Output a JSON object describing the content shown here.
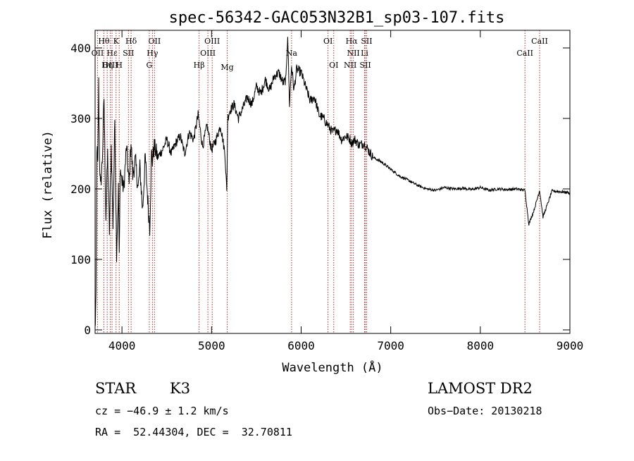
{
  "chart_data": {
    "type": "line",
    "title": "spec-56342-GAC053N32B1_sp03-107.fits",
    "xlabel": "Wavelength (Å)",
    "ylabel": "Flux (relative)",
    "xlim": [
      3700,
      9000
    ],
    "ylim": [
      -5,
      425
    ],
    "x_ticks": [
      4000,
      5000,
      6000,
      7000,
      8000,
      9000
    ],
    "y_ticks": [
      0,
      100,
      200,
      300,
      400
    ],
    "grid": false,
    "line_color": "#000000",
    "marker_color": "#b03030",
    "series": [
      {
        "x": [
          3700,
          3710,
          3720,
          3730,
          3740,
          3750,
          3760,
          3780,
          3800,
          3820,
          3840,
          3860,
          3880,
          3900,
          3920,
          3940,
          3960,
          3970,
          3980,
          4000,
          4020,
          4050,
          4080,
          4100,
          4120,
          4150,
          4180,
          4200,
          4230,
          4260,
          4290,
          4310,
          4330,
          4340,
          4360,
          4400,
          4450,
          4500,
          4550,
          4600,
          4650,
          4700,
          4750,
          4800,
          4850,
          4900,
          4950,
          5000,
          5050,
          5100,
          5150,
          5170,
          5180,
          5200,
          5250,
          5300,
          5350,
          5400,
          5450,
          5500,
          5550,
          5600,
          5650,
          5700,
          5750,
          5800,
          5830,
          5850,
          5870,
          5893,
          5920,
          5950,
          6000,
          6050,
          6100,
          6150,
          6200,
          6250,
          6300,
          6350,
          6400,
          6450,
          6500,
          6550,
          6563,
          6600,
          6650,
          6700,
          6750,
          6800,
          6900,
          7000,
          7100,
          7200,
          7300,
          7400,
          7500,
          7600,
          7700,
          7800,
          7900,
          8000,
          8100,
          8200,
          8300,
          8400,
          8498,
          8542,
          8600,
          8662,
          8700,
          8800,
          8900,
          8980,
          9000
        ],
        "y": [
          0,
          40,
          260,
          230,
          350,
          240,
          200,
          240,
          330,
          160,
          250,
          140,
          260,
          150,
          300,
          110,
          200,
          100,
          230,
          210,
          200,
          260,
          205,
          270,
          220,
          240,
          200,
          230,
          170,
          245,
          180,
          145,
          250,
          240,
          260,
          245,
          255,
          270,
          250,
          265,
          275,
          250,
          280,
          270,
          305,
          260,
          290,
          255,
          270,
          290,
          250,
          195,
          300,
          310,
          320,
          300,
          315,
          330,
          320,
          345,
          335,
          355,
          340,
          360,
          365,
          350,
          355,
          420,
          320,
          375,
          340,
          370,
          365,
          345,
          325,
          330,
          305,
          300,
          290,
          280,
          285,
          270,
          275,
          270,
          265,
          270,
          262,
          265,
          255,
          245,
          238,
          228,
          218,
          212,
          205,
          200,
          198,
          202,
          200,
          201,
          199,
          202,
          198,
          200,
          199,
          200,
          198,
          150,
          170,
          198,
          160,
          197,
          196,
          195,
          193
        ]
      }
    ],
    "markers_top": [
      {
        "label": "Hθ",
        "x": 3798,
        "row": 0
      },
      {
        "label": "K",
        "x": 3934,
        "row": 0
      },
      {
        "label": "Hδ",
        "x": 4102,
        "row": 0
      },
      {
        "label": "OII",
        "x": 4363,
        "row": 0
      },
      {
        "label": "OIII",
        "x": 5007,
        "row": 0
      },
      {
        "label": "OI",
        "x": 6300,
        "row": 0
      },
      {
        "label": "Hα",
        "x": 6563,
        "row": 0
      },
      {
        "label": "SII",
        "x": 6731,
        "row": 0
      },
      {
        "label": "CaII",
        "x": 8662,
        "row": 0
      },
      {
        "label": "OII",
        "x": 3727,
        "row": 1
      },
      {
        "label": "Hε",
        "x": 3889,
        "row": 1
      },
      {
        "label": "SII",
        "x": 4072,
        "row": 1
      },
      {
        "label": "Hγ",
        "x": 4340,
        "row": 1
      },
      {
        "label": "OIII",
        "x": 4959,
        "row": 1
      },
      {
        "label": "Na",
        "x": 5893,
        "row": 1
      },
      {
        "label": "NII",
        "x": 6583,
        "row": 1
      },
      {
        "label": "Li",
        "x": 6708,
        "row": 1
      },
      {
        "label": "CaII",
        "x": 8498,
        "row": 1
      },
      {
        "label": "OIII",
        "x": 3869,
        "row": 2
      },
      {
        "label": "Hη",
        "x": 3835,
        "row": 2
      },
      {
        "label": "H",
        "x": 3969,
        "row": 2
      },
      {
        "label": "G",
        "x": 4305,
        "row": 2
      },
      {
        "label": "Hβ",
        "x": 4861,
        "row": 2
      },
      {
        "label": "Mg",
        "x": 5175,
        "row": 3
      },
      {
        "label": "OI",
        "x": 6364,
        "row": 2
      },
      {
        "label": "NII",
        "x": 6548,
        "row": 2
      },
      {
        "label": "SII",
        "x": 6717,
        "row": 2
      }
    ]
  },
  "info": {
    "type_label": "STAR",
    "subclass": "K3",
    "survey": "LAMOST DR2",
    "cz": "cz = −46.9 ± 1.2 km/s",
    "obs_date": "Obs−Date: 20130218",
    "coords": "RA =  52.44304, DEC =  32.70811"
  }
}
